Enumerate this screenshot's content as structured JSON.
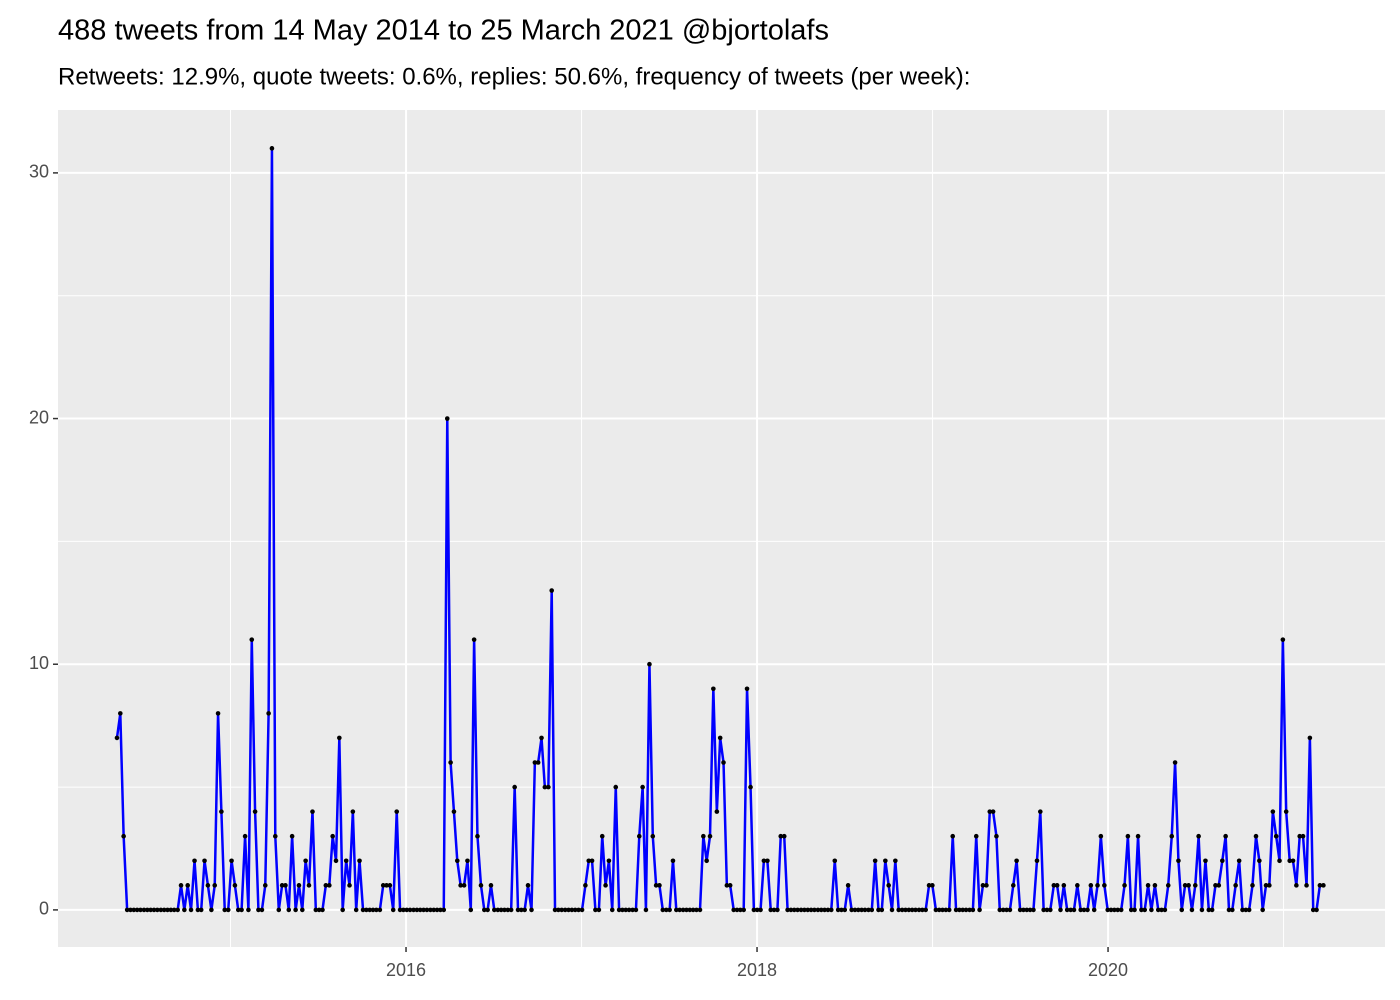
{
  "chart_data": {
    "type": "line",
    "title": "488 tweets from 14 May 2014 to 25 March 2021 @bjortolafs",
    "subtitle": "Retweets: 12.9%, quote tweets: 0.6%, replies: 50.6%, frequency of tweets (per week):",
    "color": "#0000ff",
    "point_color": "#000000",
    "background": "#ebebeb",
    "grid": true,
    "xlim": [
      2014.017,
      2021.578
    ],
    "xticks": [
      2016,
      2018,
      2020
    ],
    "x_minor_ticks": [
      2015,
      2017,
      2019,
      2021
    ],
    "ylim": [
      -1.51,
      32.56
    ],
    "yticks": [
      0,
      10,
      20,
      30
    ],
    "y_minor_ticks": [
      5,
      15,
      25
    ],
    "x": [
      2014.353,
      2014.372,
      2014.391,
      2014.411,
      2014.43,
      2014.449,
      2014.468,
      2014.487,
      2014.507,
      2014.526,
      2014.545,
      2014.564,
      2014.583,
      2014.603,
      2014.622,
      2014.641,
      2014.66,
      2014.679,
      2014.699,
      2014.718,
      2014.737,
      2014.756,
      2014.775,
      2014.795,
      2014.814,
      2014.833,
      2014.852,
      2014.871,
      2014.891,
      2014.91,
      2014.929,
      2014.948,
      2014.967,
      2014.987,
      2015.006,
      2015.025,
      2015.044,
      2015.063,
      2015.083,
      2015.102,
      2015.121,
      2015.14,
      2015.159,
      2015.179,
      2015.198,
      2015.217,
      2015.236,
      2015.255,
      2015.275,
      2015.294,
      2015.313,
      2015.332,
      2015.351,
      2015.371,
      2015.39,
      2015.409,
      2015.428,
      2015.447,
      2015.467,
      2015.486,
      2015.505,
      2015.524,
      2015.543,
      2015.563,
      2015.582,
      2015.601,
      2015.62,
      2015.639,
      2015.659,
      2015.678,
      2015.697,
      2015.716,
      2015.735,
      2015.755,
      2015.774,
      2015.793,
      2015.812,
      2015.831,
      2015.851,
      2015.87,
      2015.889,
      2015.908,
      2015.927,
      2015.947,
      2015.966,
      2015.985,
      2016.004,
      2016.023,
      2016.043,
      2016.062,
      2016.081,
      2016.1,
      2016.119,
      2016.139,
      2016.158,
      2016.177,
      2016.196,
      2016.215,
      2016.235,
      2016.254,
      2016.273,
      2016.292,
      2016.311,
      2016.331,
      2016.35,
      2016.369,
      2016.388,
      2016.407,
      2016.427,
      2016.446,
      2016.465,
      2016.484,
      2016.503,
      2016.523,
      2016.542,
      2016.561,
      2016.58,
      2016.599,
      2016.619,
      2016.638,
      2016.657,
      2016.676,
      2016.695,
      2016.715,
      2016.734,
      2016.753,
      2016.772,
      2016.791,
      2016.811,
      2016.83,
      2016.849,
      2016.868,
      2016.887,
      2016.907,
      2016.926,
      2016.945,
      2016.964,
      2016.983,
      2017.003,
      2017.022,
      2017.041,
      2017.06,
      2017.079,
      2017.099,
      2017.118,
      2017.137,
      2017.156,
      2017.175,
      2017.195,
      2017.214,
      2017.233,
      2017.252,
      2017.271,
      2017.291,
      2017.31,
      2017.329,
      2017.348,
      2017.367,
      2017.387,
      2017.406,
      2017.425,
      2017.444,
      2017.463,
      2017.483,
      2017.502,
      2017.521,
      2017.54,
      2017.559,
      2017.579,
      2017.598,
      2017.617,
      2017.636,
      2017.655,
      2017.675,
      2017.694,
      2017.713,
      2017.732,
      2017.751,
      2017.771,
      2017.79,
      2017.809,
      2017.828,
      2017.847,
      2017.867,
      2017.886,
      2017.905,
      2017.924,
      2017.943,
      2017.963,
      2017.982,
      2018.001,
      2018.02,
      2018.039,
      2018.059,
      2018.078,
      2018.097,
      2018.116,
      2018.135,
      2018.155,
      2018.174,
      2018.193,
      2018.212,
      2018.231,
      2018.251,
      2018.27,
      2018.289,
      2018.308,
      2018.327,
      2018.347,
      2018.366,
      2018.385,
      2018.404,
      2018.423,
      2018.443,
      2018.462,
      2018.481,
      2018.5,
      2018.519,
      2018.539,
      2018.558,
      2018.577,
      2018.596,
      2018.615,
      2018.635,
      2018.654,
      2018.673,
      2018.692,
      2018.711,
      2018.731,
      2018.75,
      2018.769,
      2018.788,
      2018.807,
      2018.827,
      2018.846,
      2018.865,
      2018.884,
      2018.903,
      2018.923,
      2018.942,
      2018.961,
      2018.98,
      2018.999,
      2019.019,
      2019.038,
      2019.057,
      2019.076,
      2019.095,
      2019.115,
      2019.134,
      2019.153,
      2019.172,
      2019.191,
      2019.211,
      2019.23,
      2019.249,
      2019.268,
      2019.287,
      2019.307,
      2019.326,
      2019.345,
      2019.364,
      2019.383,
      2019.403,
      2019.422,
      2019.441,
      2019.46,
      2019.479,
      2019.499,
      2019.518,
      2019.537,
      2019.556,
      2019.575,
      2019.595,
      2019.614,
      2019.633,
      2019.652,
      2019.671,
      2019.691,
      2019.71,
      2019.729,
      2019.748,
      2019.767,
      2019.787,
      2019.806,
      2019.825,
      2019.844,
      2019.863,
      2019.883,
      2019.902,
      2019.921,
      2019.94,
      2019.959,
      2019.979,
      2019.998,
      2020.017,
      2020.036,
      2020.055,
      2020.075,
      2020.094,
      2020.113,
      2020.132,
      2020.151,
      2020.171,
      2020.19,
      2020.209,
      2020.228,
      2020.247,
      2020.267,
      2020.286,
      2020.305,
      2020.324,
      2020.343,
      2020.363,
      2020.382,
      2020.401,
      2020.42,
      2020.439,
      2020.459,
      2020.478,
      2020.497,
      2020.516,
      2020.535,
      2020.555,
      2020.574,
      2020.593,
      2020.612,
      2020.631,
      2020.651,
      2020.67,
      2020.689,
      2020.708,
      2020.727,
      2020.747,
      2020.766,
      2020.785,
      2020.804,
      2020.823,
      2020.843,
      2020.862,
      2020.881,
      2020.9,
      2020.919,
      2020.939,
      2020.958,
      2020.977,
      2020.996,
      2021.015,
      2021.035,
      2021.054,
      2021.073,
      2021.092,
      2021.111,
      2021.131,
      2021.15,
      2021.169,
      2021.188,
      2021.207,
      2021.227
    ],
    "values": [
      7,
      8,
      3,
      0,
      0,
      0,
      0,
      0,
      0,
      0,
      0,
      0,
      0,
      0,
      0,
      0,
      0,
      0,
      0,
      1,
      0,
      1,
      0,
      2,
      0,
      0,
      2,
      1,
      0,
      1,
      8,
      4,
      0,
      0,
      2,
      1,
      0,
      0,
      3,
      0,
      11,
      4,
      0,
      0,
      1,
      8,
      31,
      3,
      0,
      1,
      1,
      0,
      3,
      0,
      1,
      0,
      2,
      1,
      4,
      0,
      0,
      0,
      1,
      1,
      3,
      2,
      7,
      0,
      2,
      1,
      4,
      0,
      2,
      0,
      0,
      0,
      0,
      0,
      0,
      1,
      1,
      1,
      0,
      4,
      0,
      0,
      0,
      0,
      0,
      0,
      0,
      0,
      0,
      0,
      0,
      0,
      0,
      0,
      20,
      6,
      4,
      2,
      1,
      1,
      2,
      0,
      11,
      3,
      1,
      0,
      0,
      1,
      0,
      0,
      0,
      0,
      0,
      0,
      5,
      0,
      0,
      0,
      1,
      0,
      6,
      6,
      7,
      5,
      5,
      13,
      0,
      0,
      0,
      0,
      0,
      0,
      0,
      0,
      0,
      1,
      2,
      2,
      0,
      0,
      3,
      1,
      2,
      0,
      5,
      0,
      0,
      0,
      0,
      0,
      0,
      3,
      5,
      0,
      10,
      3,
      1,
      1,
      0,
      0,
      0,
      2,
      0,
      0,
      0,
      0,
      0,
      0,
      0,
      0,
      3,
      2,
      3,
      9,
      4,
      7,
      6,
      1,
      1,
      0,
      0,
      0,
      0,
      9,
      5,
      0,
      0,
      0,
      2,
      2,
      0,
      0,
      0,
      3,
      3,
      0,
      0,
      0,
      0,
      0,
      0,
      0,
      0,
      0,
      0,
      0,
      0,
      0,
      0,
      2,
      0,
      0,
      0,
      1,
      0,
      0,
      0,
      0,
      0,
      0,
      0,
      2,
      0,
      0,
      2,
      1,
      0,
      2,
      0,
      0,
      0,
      0,
      0,
      0,
      0,
      0,
      0,
      1,
      1,
      0,
      0,
      0,
      0,
      0,
      3,
      0,
      0,
      0,
      0,
      0,
      0,
      3,
      0,
      1,
      1,
      4,
      4,
      3,
      0,
      0,
      0,
      0,
      1,
      2,
      0,
      0,
      0,
      0,
      0,
      2,
      4,
      0,
      0,
      0,
      1,
      1,
      0,
      1,
      0,
      0,
      0,
      1,
      0,
      0,
      0,
      1,
      0,
      1,
      3,
      1,
      0,
      0,
      0,
      0,
      0,
      1,
      3,
      0,
      0,
      3,
      0,
      0,
      1,
      0,
      1,
      0,
      0,
      0,
      1,
      3,
      6,
      2,
      0,
      1,
      1,
      0,
      1,
      3,
      0,
      2,
      0,
      0,
      1,
      1,
      2,
      3,
      0,
      0,
      1,
      2,
      0,
      0,
      0,
      1,
      3,
      2,
      0,
      1,
      1,
      4,
      3,
      2,
      11,
      4,
      2,
      2,
      1,
      3,
      3,
      1,
      7,
      0,
      0,
      1,
      1
    ]
  }
}
